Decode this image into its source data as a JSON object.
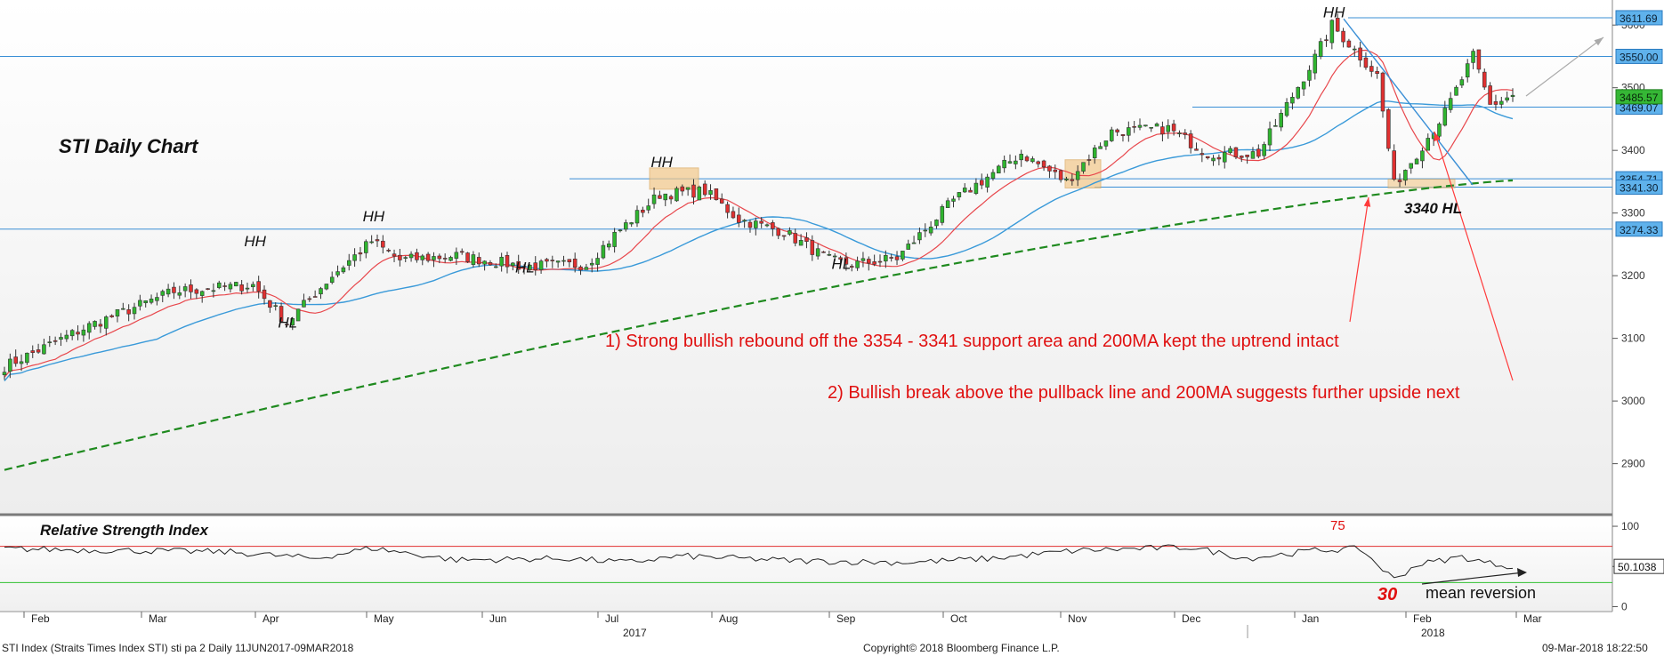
{
  "title": "STI Daily Chart",
  "rsi_title": "Relative Strength Index",
  "footer": {
    "left": "STI Index (Straits Times Index STI) sti pa 2  Daily 11JUN2017-09MAR2018",
    "center": "Copyright© 2018 Bloomberg Finance L.P.",
    "right": "09-Mar-2018 18:22:50"
  },
  "annotations": {
    "note1": "1) Strong bullish rebound off the 3354 - 3341 support area and 200MA kept the uptrend intact",
    "note2": "2) Bullish break above the pullback line and 200MA suggests further upside next",
    "hl_3340": "3340 HL",
    "rsi_75": "75",
    "rsi_30": "30",
    "mean_reversion": "mean reversion"
  },
  "chart_data": [
    {
      "type": "candlestick",
      "title": "STI Daily Chart",
      "ylim": [
        2820,
        3640
      ],
      "yticks": [
        2900,
        3000,
        3100,
        3200,
        3300,
        3400,
        3500,
        3600
      ],
      "x_months": [
        "Feb",
        "Mar",
        "Apr",
        "May",
        "Jun",
        "Jul",
        "Aug",
        "Sep",
        "Oct",
        "Nov",
        "Dec",
        "Jan",
        "Feb",
        "Mar"
      ],
      "x_years": [
        "2017",
        "2018"
      ],
      "horizontal_levels": [
        3611.69,
        3550.0,
        3469.07,
        3354.71,
        3341.3,
        3274.33
      ],
      "level_labels": [
        "3611.69",
        "3550.00",
        "3469.07",
        "3354.71",
        "3341.30",
        "3274.33"
      ],
      "last_price_label": "3485.57",
      "swing_labels": [
        {
          "text": "HH",
          "date_index": 44,
          "price": 3247
        },
        {
          "text": "HL",
          "date_index": 50,
          "price": 3117
        },
        {
          "text": "HH",
          "date_index": 65,
          "price": 3287
        },
        {
          "text": "HL",
          "date_index": 92,
          "price": 3205
        },
        {
          "text": "HH",
          "date_index": 116,
          "price": 3373
        },
        {
          "text": "HL",
          "date_index": 148,
          "price": 3211
        },
        {
          "text": "HH",
          "date_index": 235,
          "price": 3612
        },
        {
          "text": "3340 HL",
          "date_index": 246,
          "price": 3340
        }
      ],
      "series": [
        {
          "name": "price",
          "description_type": "candles"
        },
        {
          "name": "MA fast",
          "color": "#e8474c"
        },
        {
          "name": "MA slow",
          "color": "#3a9ad9"
        },
        {
          "name": "200MA",
          "color": "#1f8a1f",
          "dashed": true
        }
      ]
    },
    {
      "type": "line",
      "title": "Relative Strength Index",
      "ylim": [
        -5,
        110
      ],
      "yticks": [
        0,
        50,
        100
      ],
      "levels": [
        75,
        30
      ],
      "last_value_label": "50.1038"
    }
  ]
}
